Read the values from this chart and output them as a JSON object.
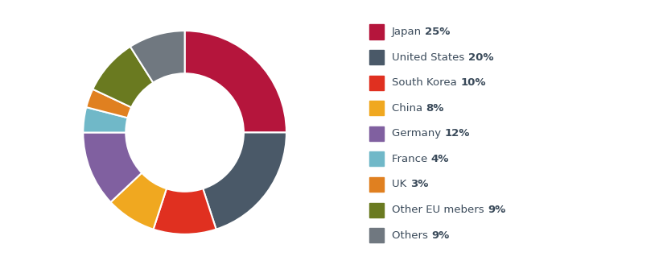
{
  "labels": [
    "Japan",
    "United States",
    "South Korea",
    "China",
    "Germany",
    "France",
    "UK",
    "Other EU mebers",
    "Others"
  ],
  "values": [
    25,
    20,
    10,
    8,
    12,
    4,
    3,
    9,
    9
  ],
  "colors": [
    "#b5153c",
    "#4a5968",
    "#e03020",
    "#f0a820",
    "#8060a0",
    "#70b8c8",
    "#e08020",
    "#6a7a20",
    "#707880"
  ],
  "legend_label_normal": [
    "Japan ",
    "United States ",
    "South Korea ",
    "China ",
    "Germany ",
    "France ",
    "UK ",
    "Other EU mebers ",
    "Others "
  ],
  "legend_label_bold": [
    "25%",
    "20%",
    "10%",
    "8%",
    "12%",
    "4%",
    "3%",
    "9%",
    "9%"
  ],
  "background_color": "#ffffff",
  "donut_width": 0.42,
  "text_color": "#3a4a5a"
}
